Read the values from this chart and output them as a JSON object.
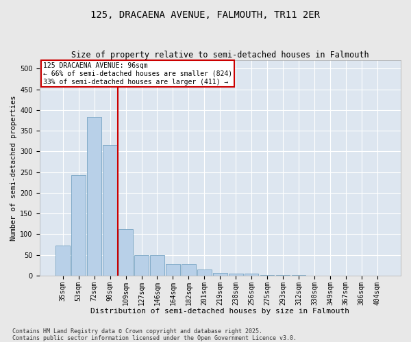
{
  "title": "125, DRACAENA AVENUE, FALMOUTH, TR11 2ER",
  "subtitle": "Size of property relative to semi-detached houses in Falmouth",
  "xlabel": "Distribution of semi-detached houses by size in Falmouth",
  "ylabel": "Number of semi-detached properties",
  "categories": [
    "35sqm",
    "53sqm",
    "72sqm",
    "90sqm",
    "109sqm",
    "127sqm",
    "146sqm",
    "164sqm",
    "182sqm",
    "201sqm",
    "219sqm",
    "238sqm",
    "256sqm",
    "275sqm",
    "293sqm",
    "312sqm",
    "330sqm",
    "349sqm",
    "367sqm",
    "386sqm",
    "404sqm"
  ],
  "values": [
    73,
    242,
    383,
    315,
    113,
    50,
    50,
    28,
    28,
    14,
    6,
    5,
    5,
    2,
    1,
    1,
    0,
    0,
    0,
    0,
    0
  ],
  "bar_color": "#b8d0e8",
  "bar_edge_color": "#6699bb",
  "property_line_color": "#cc0000",
  "property_line_x": 3.5,
  "annotation_title": "125 DRACAENA AVENUE: 96sqm",
  "annotation_line1": "← 66% of semi-detached houses are smaller (824)",
  "annotation_line2": "33% of semi-detached houses are larger (411) →",
  "annotation_box_facecolor": "#ffffff",
  "annotation_box_edgecolor": "#cc0000",
  "footer": "Contains HM Land Registry data © Crown copyright and database right 2025.\nContains public sector information licensed under the Open Government Licence v3.0.",
  "ylim": [
    0,
    520
  ],
  "yticks": [
    0,
    50,
    100,
    150,
    200,
    250,
    300,
    350,
    400,
    450,
    500
  ],
  "plot_bg_color": "#dde6f0",
  "fig_bg_color": "#e8e8e8",
  "grid_color": "#ffffff",
  "title_fontsize": 10,
  "subtitle_fontsize": 8.5,
  "ylabel_fontsize": 7.5,
  "xlabel_fontsize": 8,
  "tick_fontsize": 7,
  "annot_fontsize": 7,
  "footer_fontsize": 6
}
